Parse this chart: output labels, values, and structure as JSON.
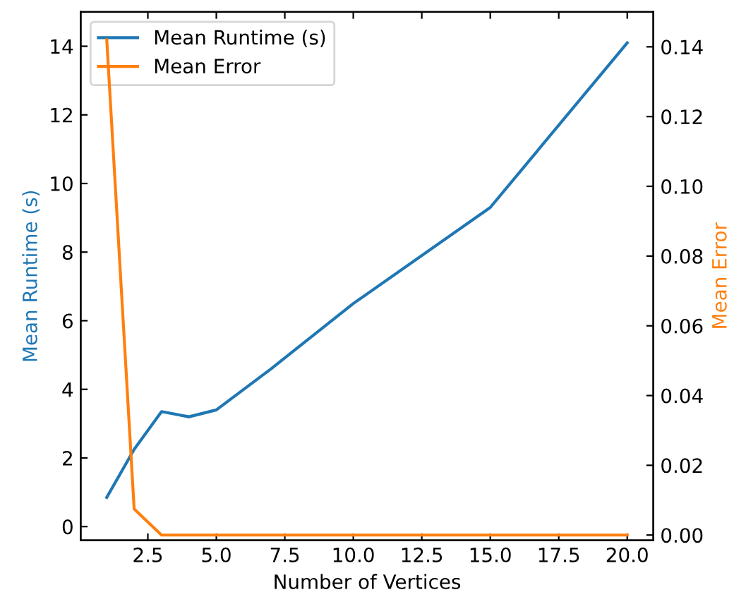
{
  "chart_data": {
    "type": "line",
    "xlabel": "Number of Vertices",
    "ylabel": "Mean Runtime (s)",
    "y2label": "Mean Error",
    "x": [
      1,
      2,
      3,
      4,
      5,
      7,
      10,
      15,
      20
    ],
    "series": [
      {
        "name": "Mean Runtime (s)",
        "color": "#1f77b4",
        "values": [
          0.85,
          2.25,
          3.35,
          3.2,
          3.4,
          4.6,
          6.5,
          9.3,
          14.1
        ]
      },
      {
        "name": "Mean Error",
        "color": "#ff7f0e",
        "axis": "y2",
        "values": [
          0.142,
          0.0075,
          0,
          0,
          0,
          0,
          0,
          0,
          0
        ]
      }
    ],
    "xlim": [
      0.05,
      20.95
    ],
    "xticks": [
      {
        "value": 2.5,
        "label": "2.5"
      },
      {
        "value": 5,
        "label": "5.0"
      },
      {
        "value": 7.5,
        "label": "7.5"
      },
      {
        "value": 10,
        "label": "10.0"
      },
      {
        "value": 12.5,
        "label": "12.5"
      },
      {
        "value": 15,
        "label": "15.0"
      },
      {
        "value": 17.5,
        "label": "17.5"
      },
      {
        "value": 20,
        "label": "20.0"
      }
    ],
    "ylim": [
      -0.4,
      15
    ],
    "yticks": [
      0,
      2,
      4,
      6,
      8,
      10,
      12,
      14
    ],
    "y2lim": [
      -0.0015,
      0.15
    ],
    "y2ticks": [
      {
        "value": 0,
        "label": "0.00"
      },
      {
        "value": 0.02,
        "label": "0.02"
      },
      {
        "value": 0.04,
        "label": "0.04"
      },
      {
        "value": 0.06,
        "label": "0.06"
      },
      {
        "value": 0.08,
        "label": "0.08"
      },
      {
        "value": 0.1,
        "label": "0.10"
      },
      {
        "value": 0.12,
        "label": "0.12"
      },
      {
        "value": 0.14,
        "label": "0.14"
      }
    ],
    "legend": "top left",
    "grid": false
  }
}
